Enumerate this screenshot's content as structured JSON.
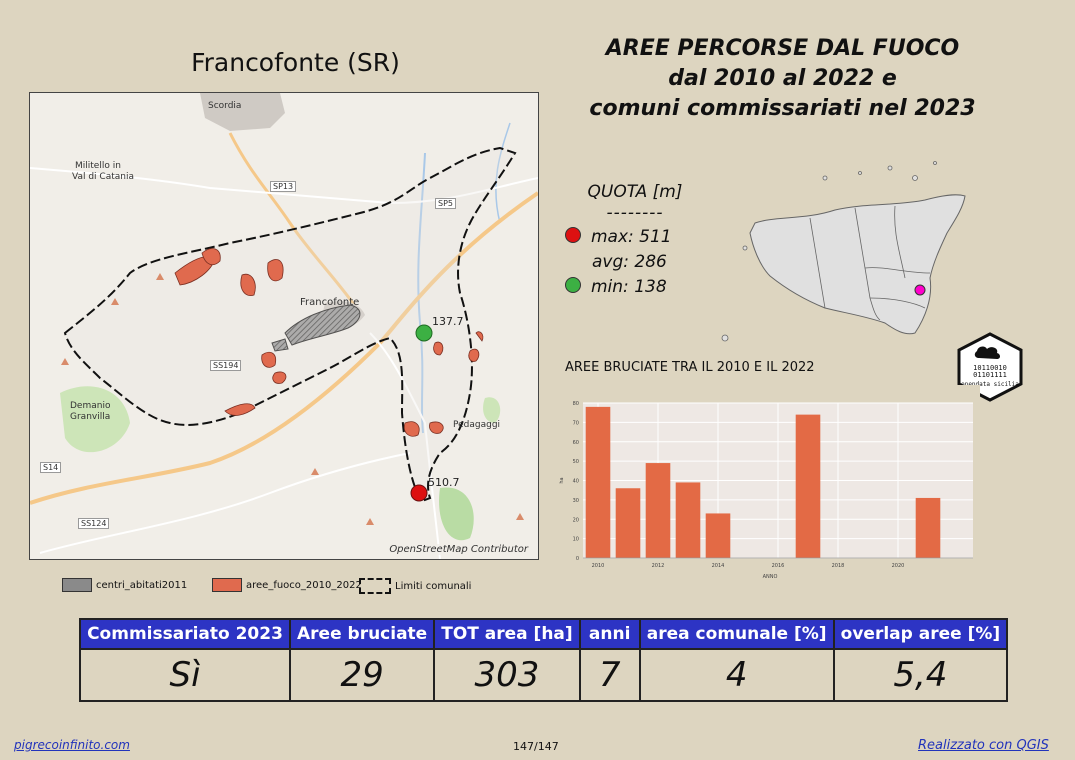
{
  "town_title": "Francofonte (SR)",
  "main_title": {
    "line1": "AREE PERCORSE DAL FUOCO",
    "line2": "dal 2010 al 2022 e",
    "line3": "comuni commissariati nel 2023"
  },
  "map": {
    "attribution": "OpenStreetMap Contributor",
    "place_labels": {
      "scordia": "Scordia",
      "militello": "Militello in",
      "militello2": "Val di Catania",
      "francofonte": "Francofonte",
      "demanio": "Demanio",
      "granvilla": "Granvilla",
      "pedagaggi": "Pedagaggi"
    },
    "road_labels": {
      "sp13": "SP13",
      "sp5": "SP5",
      "ss194": "SS194",
      "ss14": "S14",
      "ss124": "SS124"
    },
    "point_min_label": "137.7",
    "point_max_label": "510.7",
    "colors": {
      "fire": "#e06a4e",
      "boundary": "#111111",
      "min_point": "#3cb043",
      "max_point": "#dd1111"
    }
  },
  "legend": {
    "centri": "centri_abitati2011",
    "aree": "aree_fuoco_2010_2022",
    "limiti": "Limiti comunali"
  },
  "quota": {
    "title": "QUOTA [m]",
    "separator": "--------",
    "max": "max: 511",
    "avg": "avg: 286",
    "min": "min: 138"
  },
  "chart_title": "AREE BRUCIATE TRA IL 2010 E IL 2022",
  "chart_data": {
    "type": "bar",
    "title": "AREE BRUCIATE TRA IL 2010 E IL 2022",
    "xlabel": "ANNO",
    "ylabel": "ha",
    "x": [
      2010,
      2011,
      2012,
      2013,
      2014,
      2015,
      2016,
      2017,
      2018,
      2019,
      2020,
      2021,
      2022
    ],
    "values": [
      78,
      36,
      49,
      39,
      23,
      0,
      0,
      74,
      0,
      0,
      0,
      31,
      0
    ],
    "xticks": [
      "2010",
      "2012",
      "2014",
      "2016",
      "2018",
      "2020"
    ],
    "yticks": [
      "0",
      "10",
      "20",
      "30",
      "40",
      "50",
      "60",
      "70",
      "80"
    ],
    "ylim": [
      0,
      80
    ],
    "bar_color": "#e36a45",
    "grid": true
  },
  "stats": {
    "headers": [
      "Commissariato 2023",
      "Aree bruciate",
      "TOT area [ha]",
      "anni",
      "area comunale [%]",
      "overlap aree [%]"
    ],
    "values": [
      "Sì",
      "29",
      "303",
      "7",
      "4",
      "5,4"
    ]
  },
  "footer": {
    "left": "pigrecoinfinito.com",
    "page": "147/147",
    "right": "Realizzato con QGIS"
  },
  "logo": {
    "text": "opendata sicilia"
  },
  "sicily_map": {
    "highlight_color": "#ff00cc"
  }
}
